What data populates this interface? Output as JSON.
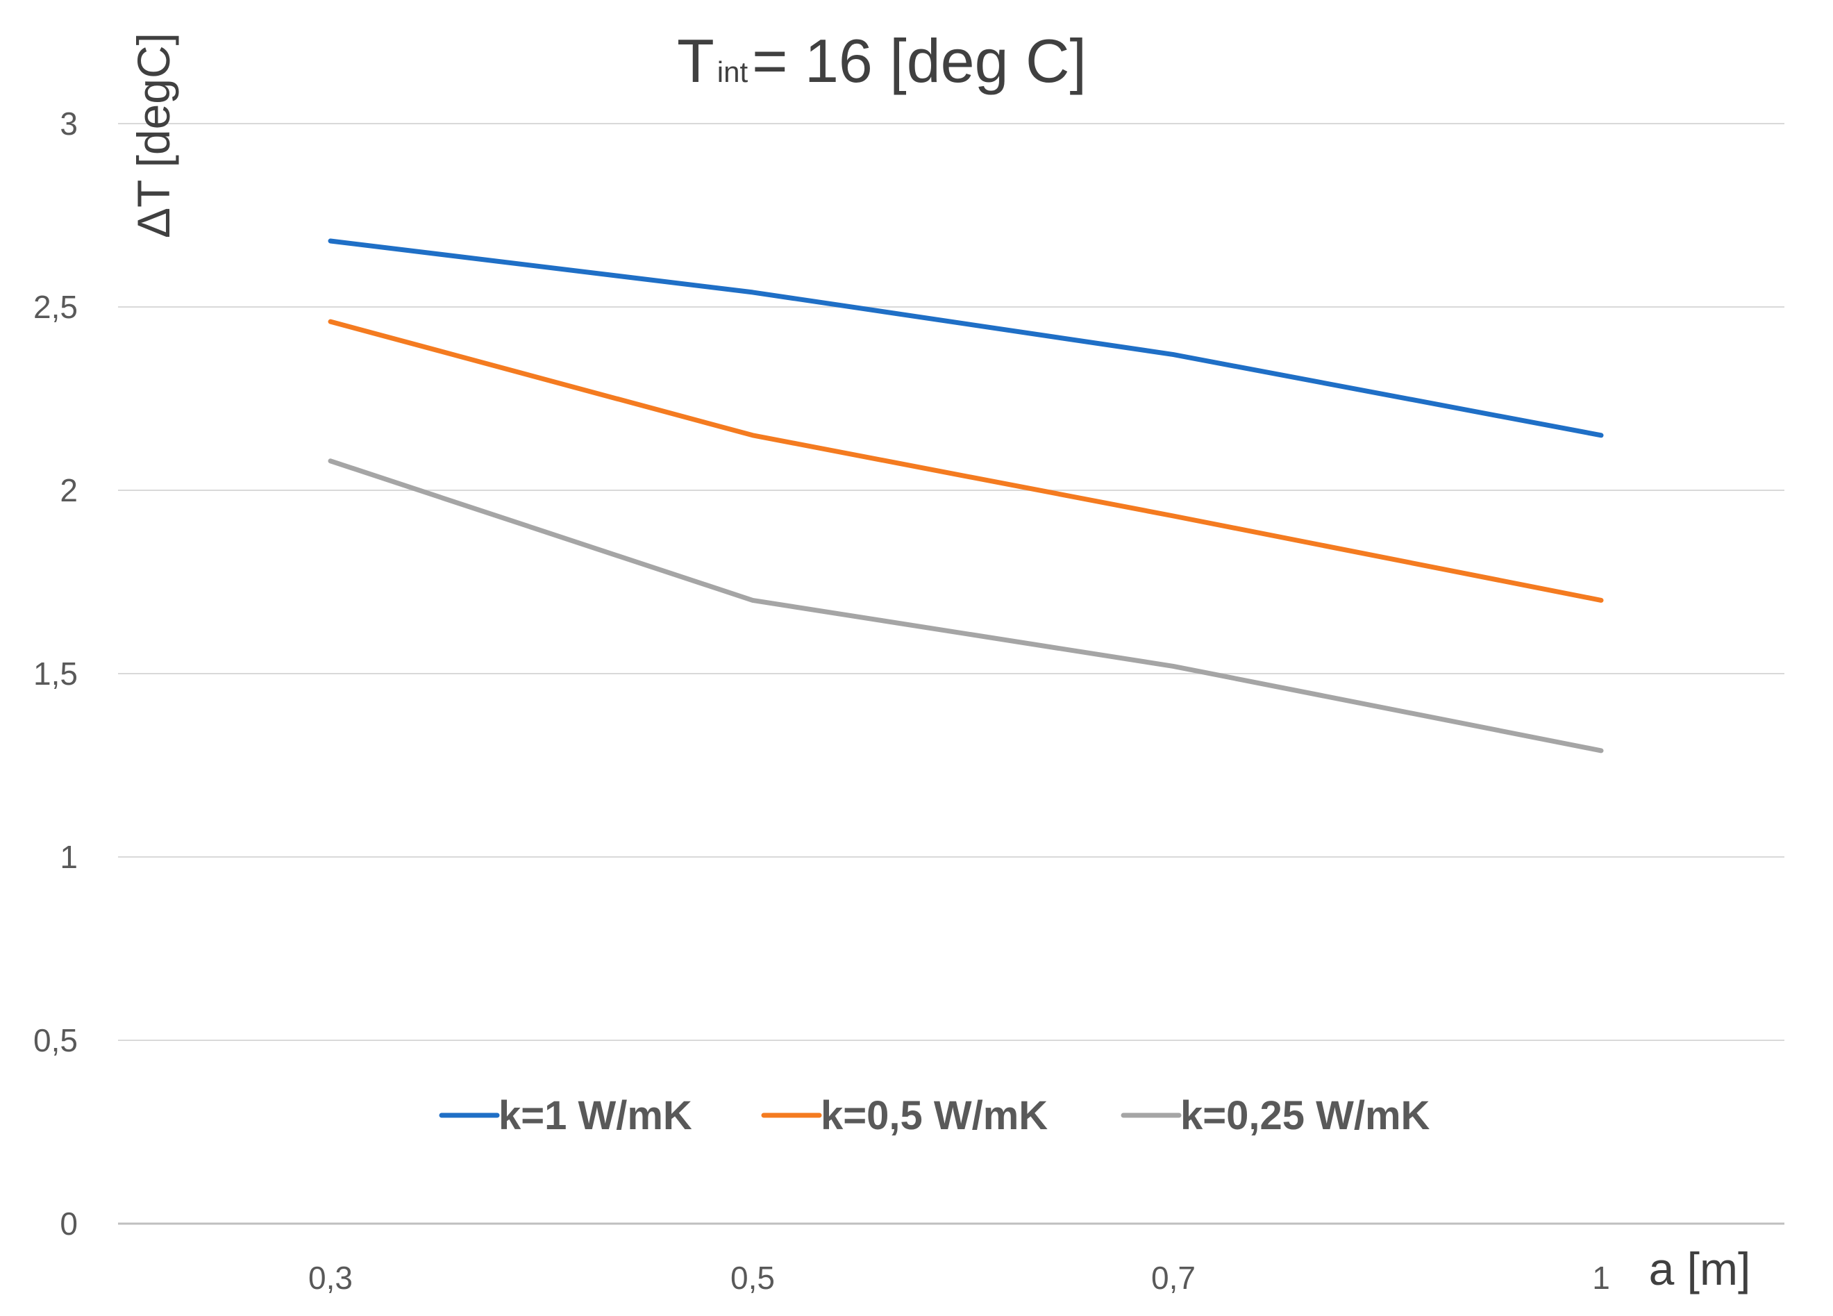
{
  "chart_data": {
    "type": "line",
    "title": "Tint= 16 [deg C]",
    "title_main": "T",
    "title_sub": "int",
    "title_rest": "= 16 [deg C]",
    "xlabel": "a [m]",
    "ylabel": "ΔT [degC]",
    "categories": [
      "0,3",
      "0,5",
      "0,7",
      "1"
    ],
    "y_ticks": [
      "0",
      "0,5",
      "1",
      "1,5",
      "2",
      "2,5",
      "3"
    ],
    "y_tick_values": [
      0,
      0.5,
      1,
      1.5,
      2,
      2.5,
      3
    ],
    "ylim": [
      0,
      3
    ],
    "grid": true,
    "legend_position": "lower-center",
    "series": [
      {
        "name": "k=1 W/mK",
        "color": "#1f6fc6",
        "values": [
          2.68,
          2.54,
          2.37,
          2.15
        ]
      },
      {
        "name": "k=0,5 W/mK",
        "color": "#f47b20",
        "values": [
          2.46,
          2.15,
          1.93,
          1.7
        ]
      },
      {
        "name": "k=0,25 W/mK",
        "color": "#a5a5a5",
        "values": [
          2.08,
          1.7,
          1.52,
          1.29
        ]
      }
    ]
  }
}
